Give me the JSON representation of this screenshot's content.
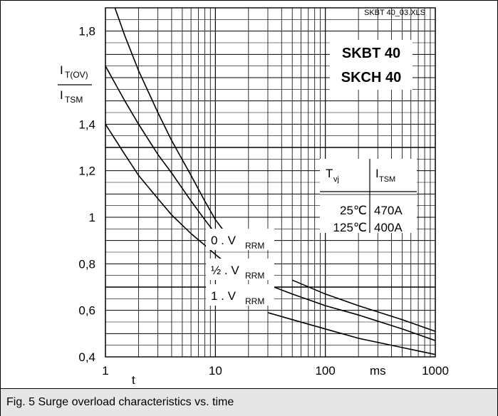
{
  "file_label": "SKBT 40_03.XLS",
  "caption": "Fig. 5 Surge overload characteristics vs. time",
  "chart_data": {
    "type": "line",
    "x_scale": "log",
    "xlim": [
      1,
      1000
    ],
    "ylim": [
      0.4,
      1.9
    ],
    "x_ticks": [
      1,
      10,
      100,
      1000
    ],
    "x_tick_labels": [
      "1",
      "10",
      "100",
      "1000"
    ],
    "x_unit": "ms",
    "x_symbol": "t",
    "y_ticks": [
      0.4,
      0.6,
      0.8,
      1.0,
      1.2,
      1.4,
      1.8
    ],
    "y_tick_labels": [
      "0,4",
      "0,6",
      "0,8",
      "1",
      "1,2",
      "1,4",
      "1,8"
    ],
    "y_label_main": "I",
    "y_label_main_sub": "T(OV)",
    "y_label_den": "I",
    "y_label_den_sub": "TSM",
    "device_labels": [
      "SKBT 40",
      "SKCH 40"
    ],
    "table": {
      "headers": [
        {
          "main": "T",
          "sub": "vj"
        },
        {
          "main": "I",
          "sub": "TSM"
        }
      ],
      "rows": [
        [
          "25℃",
          "470A"
        ],
        [
          "125℃",
          "400A"
        ]
      ]
    },
    "series": [
      {
        "name": "0 . V",
        "name_sub": "RRM",
        "x": [
          1.22,
          1.5,
          2,
          3,
          4,
          6,
          8,
          10,
          12
        ],
        "y": [
          1.9,
          1.78,
          1.63,
          1.45,
          1.33,
          1.18,
          1.07,
          0.99,
          0.94
        ],
        "x_right": [
          50,
          100,
          200,
          500,
          1000
        ],
        "y_right": [
          0.73,
          0.67,
          0.62,
          0.56,
          0.51
        ]
      },
      {
        "name": "½ . V",
        "name_sub": "RRM",
        "x": [
          1,
          1.5,
          2,
          3,
          4,
          6,
          8,
          10,
          12
        ],
        "y": [
          1.65,
          1.5,
          1.4,
          1.27,
          1.19,
          1.07,
          0.99,
          0.93,
          0.89
        ],
        "x_right": [
          30,
          50,
          100,
          200,
          500,
          1000
        ],
        "y_right": [
          0.71,
          0.67,
          0.62,
          0.58,
          0.52,
          0.47
        ]
      },
      {
        "name": "1 . V",
        "name_sub": "RRM",
        "x": [
          1,
          1.5,
          2,
          3,
          4,
          6,
          8,
          10,
          12
        ],
        "y": [
          1.4,
          1.27,
          1.18,
          1.08,
          1.01,
          0.93,
          0.88,
          0.84,
          0.81
        ],
        "x_right": [
          30,
          50,
          100,
          200,
          500,
          1000
        ],
        "y_right": [
          0.59,
          0.56,
          0.52,
          0.48,
          0.44,
          0.41
        ]
      }
    ],
    "grid": true
  }
}
